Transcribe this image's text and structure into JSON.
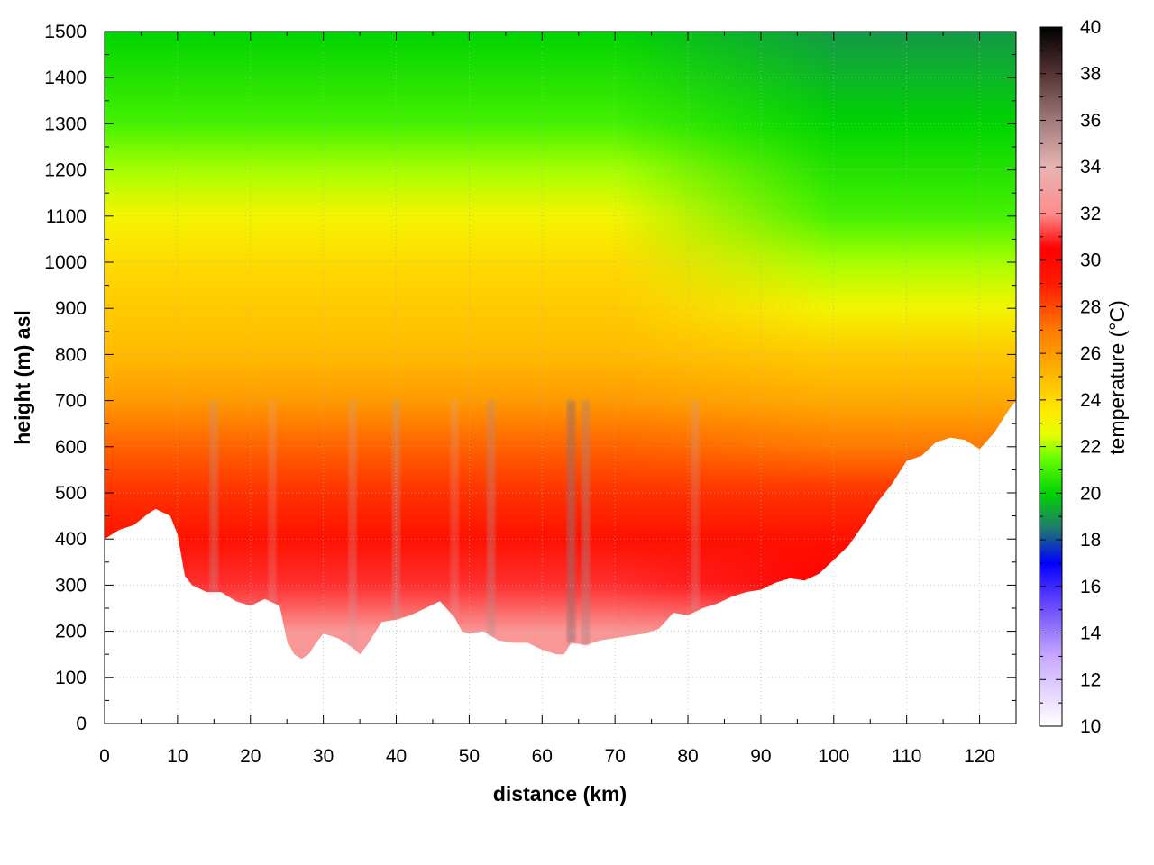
{
  "chart_data": {
    "type": "heatmap",
    "title": "",
    "xlabel": "distance (km)",
    "ylabel": "height (m) asl",
    "colorbar_label": "temperature (°C)",
    "xlim": [
      0,
      125
    ],
    "ylim": [
      0,
      1500
    ],
    "clim": [
      10,
      40
    ],
    "x_ticks": [
      0,
      10,
      20,
      30,
      40,
      50,
      60,
      70,
      80,
      90,
      100,
      110,
      120
    ],
    "x_tick_labels": [
      "0",
      "10",
      "20",
      "30",
      "40",
      "50",
      "60",
      "70",
      "80",
      "90",
      "100",
      "110",
      "120"
    ],
    "y_ticks": [
      0,
      100,
      200,
      300,
      400,
      500,
      600,
      700,
      800,
      900,
      1000,
      1100,
      1200,
      1300,
      1400,
      1500
    ],
    "y_tick_labels": [
      "0",
      "100",
      "200",
      "300",
      "400",
      "500",
      "600",
      "700",
      "800",
      "900",
      "1000",
      "1100",
      "1200",
      "1300",
      "1400",
      "1500"
    ],
    "colorbar_ticks": [
      10,
      12,
      14,
      16,
      18,
      20,
      22,
      24,
      26,
      28,
      30,
      32,
      34,
      36,
      38,
      40
    ],
    "colorbar_tick_labels": [
      "10",
      "12",
      "14",
      "16",
      "18",
      "20",
      "22",
      "24",
      "26",
      "28",
      "30",
      "32",
      "34",
      "36",
      "38",
      "40"
    ],
    "grid": true,
    "colormap": [
      {
        "t": 10,
        "color": "#ffffff"
      },
      {
        "t": 13,
        "color": "#c8a8ff"
      },
      {
        "t": 15.5,
        "color": "#5a3cff"
      },
      {
        "t": 17,
        "color": "#0000ff"
      },
      {
        "t": 18.5,
        "color": "#1f7a6e"
      },
      {
        "t": 20,
        "color": "#00d400"
      },
      {
        "t": 21.5,
        "color": "#66ff00"
      },
      {
        "t": 22.5,
        "color": "#e6ff00"
      },
      {
        "t": 23.5,
        "color": "#ffea00"
      },
      {
        "t": 25,
        "color": "#ffba00"
      },
      {
        "t": 27,
        "color": "#ff7a00"
      },
      {
        "t": 29,
        "color": "#ff1a00"
      },
      {
        "t": 30.5,
        "color": "#ff0000"
      },
      {
        "t": 32,
        "color": "#ff8c8c"
      },
      {
        "t": 34,
        "color": "#e8b4b4"
      },
      {
        "t": 36,
        "color": "#a07a7a"
      },
      {
        "t": 38,
        "color": "#553333"
      },
      {
        "t": 40,
        "color": "#000000"
      }
    ],
    "terrain_profile": {
      "distance_km": [
        0,
        2,
        4,
        6,
        7,
        9,
        10,
        11,
        12,
        14,
        16,
        18,
        20,
        22,
        24,
        25,
        26,
        27,
        28,
        29,
        30,
        32,
        34,
        35,
        36,
        38,
        40,
        42,
        44,
        46,
        48,
        49,
        50,
        52,
        54,
        56,
        58,
        60,
        62,
        63,
        64,
        66,
        68,
        70,
        72,
        74,
        76,
        78,
        80,
        82,
        84,
        86,
        88,
        90,
        92,
        94,
        96,
        98,
        100,
        102,
        104,
        106,
        108,
        110,
        112,
        114,
        116,
        118,
        120,
        122,
        124,
        125
      ],
      "surface_height_m": [
        400,
        420,
        430,
        455,
        465,
        450,
        410,
        320,
        300,
        285,
        285,
        265,
        255,
        270,
        255,
        180,
        150,
        140,
        150,
        175,
        195,
        185,
        165,
        150,
        170,
        220,
        225,
        235,
        250,
        265,
        230,
        200,
        195,
        200,
        180,
        175,
        175,
        160,
        150,
        150,
        175,
        170,
        180,
        185,
        190,
        195,
        205,
        240,
        235,
        250,
        260,
        275,
        285,
        290,
        305,
        315,
        310,
        325,
        355,
        385,
        430,
        480,
        520,
        570,
        580,
        610,
        620,
        615,
        595,
        630,
        680,
        700
      ]
    },
    "temperature_at_heights": {
      "heights_m": [
        200,
        300,
        400,
        500,
        600,
        700,
        800,
        900,
        1000,
        1100,
        1200,
        1300,
        1400,
        1500
      ],
      "temperature_c_left_section": [
        32.5,
        31,
        29.5,
        28.5,
        27.5,
        26,
        25,
        24.5,
        24,
        23,
        22,
        21,
        20.5,
        20
      ],
      "temperature_c_right_section": [
        32,
        30.5,
        29.5,
        28.5,
        27,
        25.5,
        24.5,
        23,
        22,
        21,
        20.5,
        20,
        19.5,
        19
      ]
    },
    "top_cutoff_height_m": 1500
  }
}
